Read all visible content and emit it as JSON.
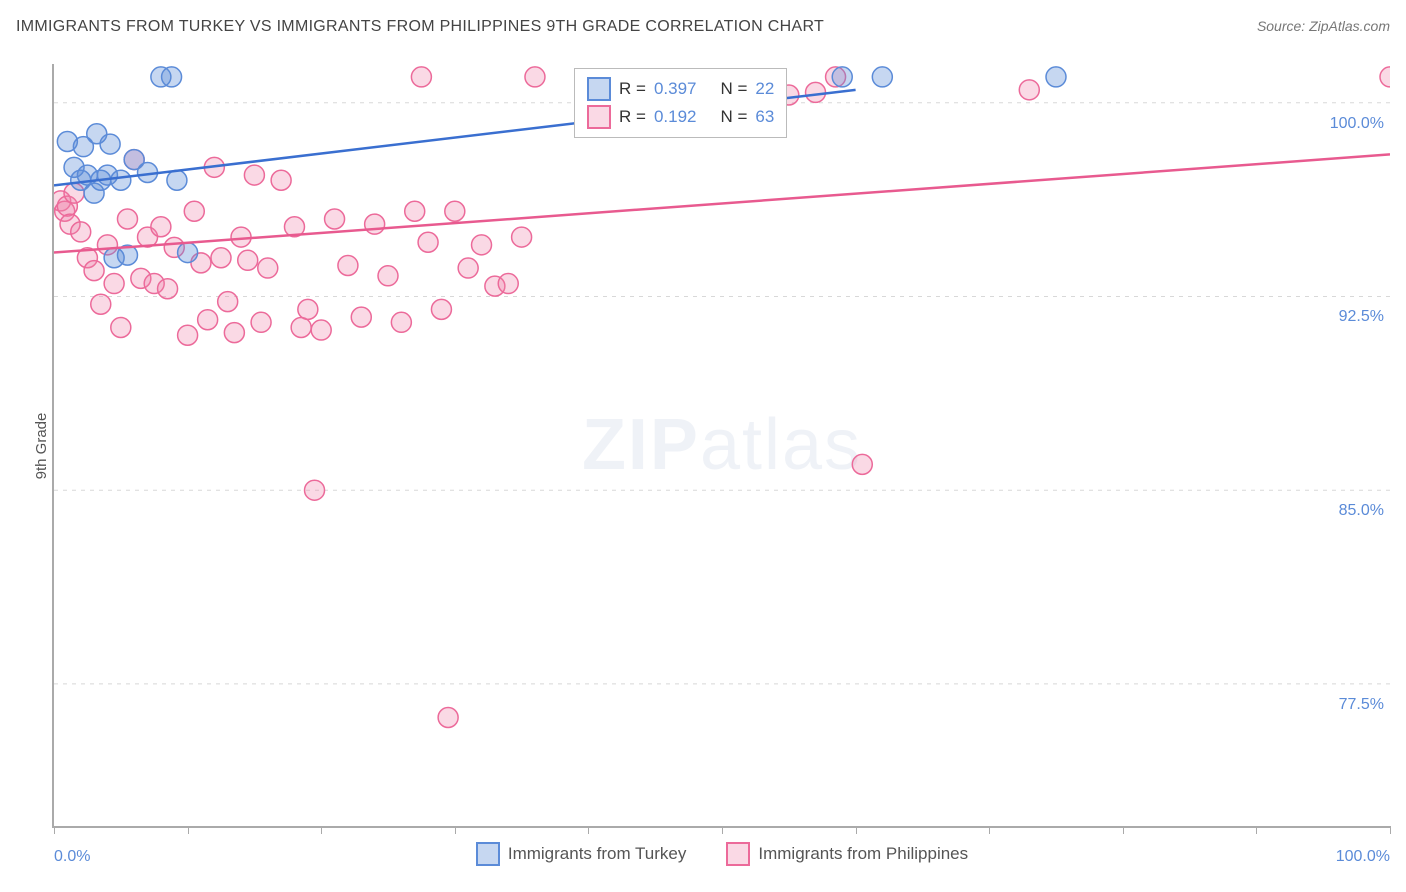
{
  "title": "IMMIGRANTS FROM TURKEY VS IMMIGRANTS FROM PHILIPPINES 9TH GRADE CORRELATION CHART",
  "source_label": "Source: ZipAtlas.com",
  "y_axis_label": "9th Grade",
  "watermark_zip": "ZIP",
  "watermark_atlas": "atlas",
  "chart": {
    "type": "scatter_with_regression",
    "xlim": [
      0,
      100
    ],
    "ylim": [
      72.0,
      101.5
    ],
    "x_ticks": [
      0,
      10,
      20,
      30,
      40,
      50,
      60,
      70,
      80,
      90,
      100
    ],
    "x_tick_labels": {
      "0": "0.0%",
      "100": "100.0%"
    },
    "y_ticks": [
      77.5,
      85.0,
      92.5,
      100.0
    ],
    "y_tick_labels": [
      "77.5%",
      "85.0%",
      "92.5%",
      "100.0%"
    ],
    "grid_color": "#d8d8d8",
    "axis_color": "#aaaaaa",
    "background_color": "#ffffff",
    "tick_label_color": "#5b8bd8",
    "marker_radius": 10,
    "marker_stroke_width": 1.5,
    "regression_line_width": 2.5,
    "series": {
      "turkey": {
        "label": "Immigrants from Turkey",
        "fill": "rgba(91,139,216,0.35)",
        "stroke": "#5b8bd8",
        "line_color": "#3a6fd0",
        "R": "0.397",
        "N": "22",
        "regression": {
          "x1": 0,
          "y1": 96.8,
          "x2": 60,
          "y2": 100.5
        },
        "points": [
          [
            1.0,
            98.5
          ],
          [
            1.5,
            97.5
          ],
          [
            2.0,
            97.0
          ],
          [
            2.2,
            98.3
          ],
          [
            2.5,
            97.2
          ],
          [
            3.0,
            96.5
          ],
          [
            3.2,
            98.8
          ],
          [
            3.5,
            97.0
          ],
          [
            4.0,
            97.2
          ],
          [
            4.2,
            98.4
          ],
          [
            4.5,
            94.0
          ],
          [
            5.0,
            97.0
          ],
          [
            5.5,
            94.1
          ],
          [
            6.0,
            97.8
          ],
          [
            7.0,
            97.3
          ],
          [
            8.0,
            101.0
          ],
          [
            8.8,
            101.0
          ],
          [
            9.2,
            97.0
          ],
          [
            10.0,
            94.2
          ],
          [
            59.0,
            101.0
          ],
          [
            62.0,
            101.0
          ],
          [
            75.0,
            101.0
          ]
        ]
      },
      "philippines": {
        "label": "Immigrants from Philippines",
        "fill": "rgba(240,130,170,0.30)",
        "stroke": "#ec6a9a",
        "line_color": "#e85a8f",
        "R": "0.192",
        "N": "63",
        "regression": {
          "x1": 0,
          "y1": 94.2,
          "x2": 100,
          "y2": 98.0
        },
        "points": [
          [
            0.5,
            96.2
          ],
          [
            0.8,
            95.8
          ],
          [
            1.0,
            96.0
          ],
          [
            1.2,
            95.3
          ],
          [
            1.5,
            96.5
          ],
          [
            2.0,
            95.0
          ],
          [
            2.5,
            94.0
          ],
          [
            3.0,
            93.5
          ],
          [
            3.5,
            92.2
          ],
          [
            4.0,
            94.5
          ],
          [
            4.5,
            93.0
          ],
          [
            5.0,
            91.3
          ],
          [
            5.5,
            95.5
          ],
          [
            6.0,
            97.8
          ],
          [
            6.5,
            93.2
          ],
          [
            7.0,
            94.8
          ],
          [
            7.5,
            93.0
          ],
          [
            8.0,
            95.2
          ],
          [
            8.5,
            92.8
          ],
          [
            9.0,
            94.4
          ],
          [
            10.0,
            91.0
          ],
          [
            10.5,
            95.8
          ],
          [
            11.0,
            93.8
          ],
          [
            11.5,
            91.6
          ],
          [
            12.0,
            97.5
          ],
          [
            12.5,
            94.0
          ],
          [
            13.0,
            92.3
          ],
          [
            13.5,
            91.1
          ],
          [
            14.0,
            94.8
          ],
          [
            14.5,
            93.9
          ],
          [
            15.0,
            97.2
          ],
          [
            15.5,
            91.5
          ],
          [
            16.0,
            93.6
          ],
          [
            17.0,
            97.0
          ],
          [
            18.0,
            95.2
          ],
          [
            18.5,
            91.3
          ],
          [
            19.0,
            92.0
          ],
          [
            19.5,
            85.0
          ],
          [
            20.0,
            91.2
          ],
          [
            21.0,
            95.5
          ],
          [
            22.0,
            93.7
          ],
          [
            23.0,
            91.7
          ],
          [
            24.0,
            95.3
          ],
          [
            25.0,
            93.3
          ],
          [
            26.0,
            91.5
          ],
          [
            27.0,
            95.8
          ],
          [
            27.5,
            101.0
          ],
          [
            28.0,
            94.6
          ],
          [
            29.0,
            92.0
          ],
          [
            29.5,
            76.2
          ],
          [
            30.0,
            95.8
          ],
          [
            31.0,
            93.6
          ],
          [
            32.0,
            94.5
          ],
          [
            33.0,
            92.9
          ],
          [
            34.0,
            93.0
          ],
          [
            35.0,
            94.8
          ],
          [
            36.0,
            101.0
          ],
          [
            55.0,
            100.3
          ],
          [
            57.0,
            100.4
          ],
          [
            58.5,
            101.0
          ],
          [
            60.5,
            86.0
          ],
          [
            73.0,
            100.5
          ],
          [
            100.0,
            101.0
          ]
        ]
      }
    }
  },
  "r_legend": {
    "r_prefix": "R =",
    "n_prefix": "N ="
  }
}
